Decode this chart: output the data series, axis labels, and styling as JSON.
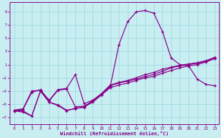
{
  "xlabel": "Windchill (Refroidissement éolien,°C)",
  "bg_color": "#c8eef2",
  "grid_color": "#a0d8e0",
  "line_color": "#880088",
  "xlim": [
    -0.5,
    23.5
  ],
  "ylim": [
    -8.0,
    10.5
  ],
  "xticks": [
    0,
    1,
    2,
    3,
    4,
    5,
    6,
    7,
    8,
    9,
    10,
    11,
    12,
    13,
    14,
    15,
    16,
    17,
    18,
    19,
    20,
    21,
    22,
    23
  ],
  "yticks": [
    -7,
    -5,
    -3,
    -1,
    1,
    3,
    5,
    7,
    9
  ],
  "lines": [
    {
      "x": [
        0,
        1,
        2,
        3,
        4,
        5,
        6,
        7,
        8,
        9,
        10,
        11,
        12,
        13,
        14,
        15,
        16,
        17,
        18,
        19,
        20,
        21,
        22,
        23
      ],
      "y": [
        -6.0,
        -6.2,
        -6.8,
        -3.0,
        -4.7,
        -5.2,
        -6.0,
        -5.6,
        -5.5,
        -4.5,
        -3.5,
        -2.4,
        4.0,
        7.5,
        9.0,
        9.2,
        8.8,
        6.0,
        2.0,
        1.0,
        0.8,
        -1.2,
        -2.0,
        -2.2
      ]
    },
    {
      "x": [
        0,
        1,
        2,
        3,
        4,
        5,
        6,
        7,
        8,
        9,
        10,
        11,
        12,
        13,
        14,
        15,
        16,
        17,
        18,
        19,
        20,
        21,
        22,
        23
      ],
      "y": [
        -6.0,
        -5.8,
        -3.2,
        -2.8,
        -4.5,
        -2.9,
        -2.7,
        -5.4,
        -5.3,
        -4.5,
        -3.5,
        -2.2,
        -1.8,
        -1.5,
        -1.2,
        -0.8,
        -0.5,
        0.0,
        0.5,
        0.8,
        1.0,
        1.2,
        1.5,
        2.0
      ]
    },
    {
      "x": [
        0,
        1,
        2,
        3,
        4,
        5,
        6,
        7,
        8,
        9,
        10,
        11,
        12,
        13,
        14,
        15,
        16,
        17,
        18,
        19,
        20,
        21,
        22,
        23
      ],
      "y": [
        -5.9,
        -5.7,
        -3.0,
        -2.9,
        -4.4,
        -2.8,
        -2.6,
        -0.5,
        -4.9,
        -4.4,
        -3.4,
        -2.1,
        -1.7,
        -1.4,
        -1.0,
        -0.5,
        -0.2,
        0.3,
        0.6,
        0.9,
        1.1,
        1.3,
        1.6,
        2.1
      ]
    },
    {
      "x": [
        0,
        1,
        2,
        3,
        4,
        5,
        6,
        7,
        8,
        9,
        10,
        11,
        12,
        13,
        14,
        15,
        16,
        17,
        18,
        19,
        20,
        21,
        22,
        23
      ],
      "y": [
        -6.0,
        -6.0,
        -6.8,
        -3.0,
        -4.7,
        -5.1,
        -5.9,
        -5.7,
        -5.4,
        -4.7,
        -3.6,
        -2.5,
        -2.1,
        -1.8,
        -1.4,
        -1.0,
        -0.8,
        -0.3,
        0.1,
        0.5,
        0.8,
        1.0,
        1.4,
        1.9
      ]
    }
  ]
}
